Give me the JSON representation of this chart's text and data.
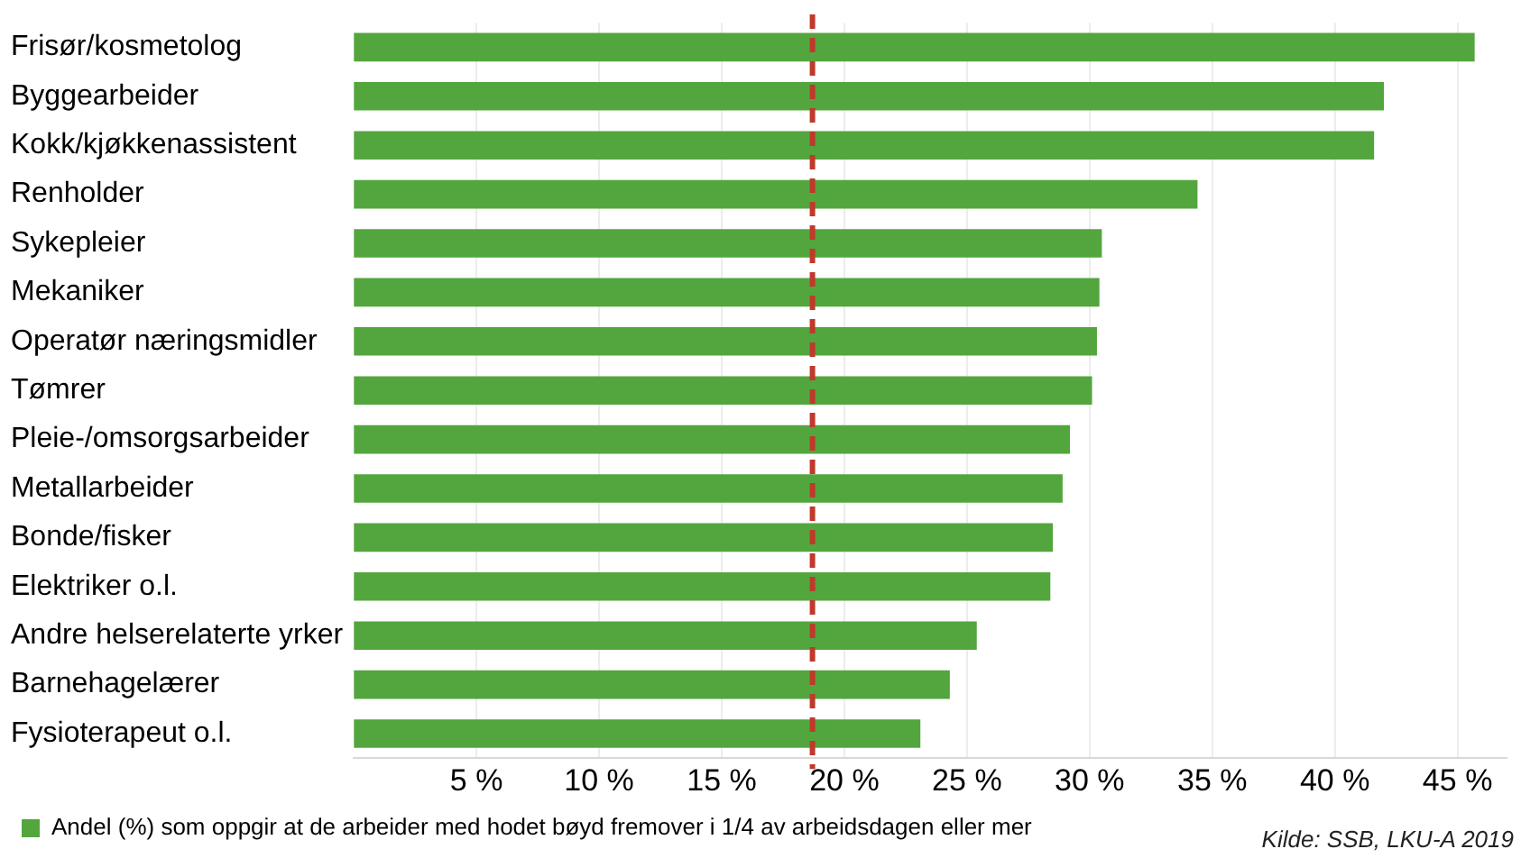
{
  "chart_data": {
    "type": "bar",
    "orientation": "horizontal",
    "categories": [
      "Frisør/kosmetolog",
      "Byggearbeider",
      "Kokk/kjøkkenassistent",
      "Renholder",
      "Sykepleier",
      "Mekaniker",
      "Operatør næringsmidler",
      "Tømrer",
      "Pleie-/omsorgsarbeider",
      "Metallarbeider",
      "Bonde/fisker",
      "Elektriker o.l.",
      "Andre helserelaterte yrker",
      "Barnehagelærer",
      "Fysioterapeut o.l."
    ],
    "series": [
      {
        "name": "Andel (%) som oppgir at de arbeider med hodet bøyd fremover i 1/4 av arbeidsdagen eller mer",
        "color": "#53a63d",
        "values": [
          45.7,
          42.0,
          41.6,
          34.4,
          30.5,
          30.4,
          30.3,
          30.1,
          29.2,
          28.9,
          28.5,
          28.4,
          25.4,
          24.3,
          23.1
        ]
      }
    ],
    "xlim": [
      0,
      47
    ],
    "xticks": [
      {
        "value": 5,
        "label": "5 %"
      },
      {
        "value": 10,
        "label": "10 %"
      },
      {
        "value": 15,
        "label": "15 %"
      },
      {
        "value": 20,
        "label": "20 %"
      },
      {
        "value": 25,
        "label": "25 %"
      },
      {
        "value": 30,
        "label": "30 %"
      },
      {
        "value": 35,
        "label": "35 %"
      },
      {
        "value": 40,
        "label": "40 %"
      },
      {
        "value": 45,
        "label": "45 %"
      }
    ],
    "ref_lines": [
      {
        "axis": "x",
        "value": 18.7,
        "color": "#c0392b",
        "line_style": "dashed"
      }
    ],
    "grid": "x",
    "legend": "bottom left",
    "annotations": [
      "Kilde: SSB, LKU-A 2019"
    ]
  }
}
